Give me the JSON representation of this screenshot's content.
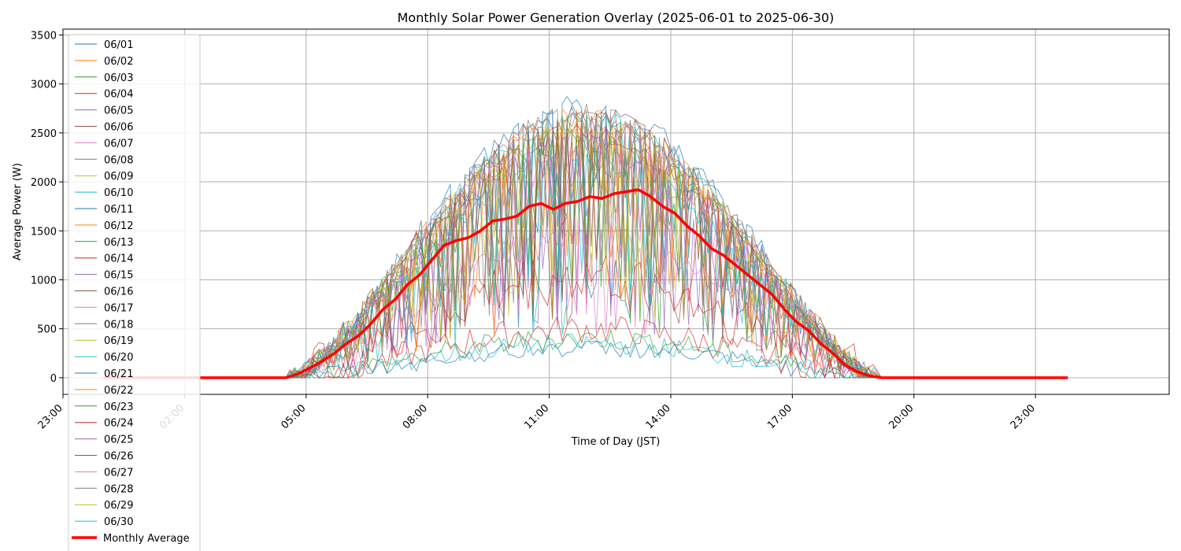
{
  "chart_data": {
    "type": "line",
    "title": "Monthly Solar Power Generation Overlay (2025-06-01 to 2025-06-30)",
    "xlabel": "Time of Day (JST)",
    "ylabel": "Average Power (W)",
    "x_unit": "hours of day (JST)",
    "xlim": [
      23.0,
      26.3
    ],
    "xlim_note": "axis spans 23:00 (previous day) to about 02:15 the next day; values below are hours since 00:00",
    "x_range_hours": [
      -1.0,
      26.3
    ],
    "ylim": [
      -170,
      3560
    ],
    "grid": true,
    "legend_position": "upper-left",
    "x_ticks": [
      {
        "label": "23:00",
        "hour": -1
      },
      {
        "label": "02:00",
        "hour": 2
      },
      {
        "label": "05:00",
        "hour": 5
      },
      {
        "label": "08:00",
        "hour": 8
      },
      {
        "label": "11:00",
        "hour": 11
      },
      {
        "label": "14:00",
        "hour": 14
      },
      {
        "label": "17:00",
        "hour": 17
      },
      {
        "label": "20:00",
        "hour": 20
      },
      {
        "label": "23:00",
        "hour": 23
      }
    ],
    "y_ticks": [
      0,
      500,
      1000,
      1500,
      2000,
      2500,
      3000,
      3500
    ],
    "daily_series_hours": [
      0,
      4.5,
      5,
      5.5,
      6,
      6.5,
      7,
      7.5,
      8,
      8.5,
      9,
      9.5,
      10,
      10.5,
      11,
      11.5,
      12,
      12.5,
      13,
      13.5,
      14,
      14.5,
      15,
      15.5,
      16,
      16.5,
      17,
      17.5,
      18,
      18.5,
      19,
      23.8
    ],
    "series": [
      {
        "name": "06/01",
        "color": "#1f77b4",
        "peak": 2700
      },
      {
        "name": "06/02",
        "color": "#ff7f0e",
        "peak": 2650
      },
      {
        "name": "06/03",
        "color": "#2ca02c",
        "peak": 2500
      },
      {
        "name": "06/04",
        "color": "#d62728",
        "peak": 500
      },
      {
        "name": "06/05",
        "color": "#9467bd",
        "peak": 2300
      },
      {
        "name": "06/06",
        "color": "#8c564b",
        "peak": 2600
      },
      {
        "name": "06/07",
        "color": "#e377c2",
        "peak": 2400
      },
      {
        "name": "06/08",
        "color": "#7f7f7f",
        "peak": 2650
      },
      {
        "name": "06/09",
        "color": "#bcbd22",
        "peak": 2600
      },
      {
        "name": "06/10",
        "color": "#17becf",
        "peak": 350
      },
      {
        "name": "06/11",
        "color": "#1f77b4",
        "peak": 2800
      },
      {
        "name": "06/12",
        "color": "#ff7f0e",
        "peak": 2700
      },
      {
        "name": "06/13",
        "color": "#2ca02c",
        "peak": 400
      },
      {
        "name": "06/14",
        "color": "#d62728",
        "peak": 2500
      },
      {
        "name": "06/15",
        "color": "#9467bd",
        "peak": 2550
      },
      {
        "name": "06/16",
        "color": "#8c564b",
        "peak": 2650
      },
      {
        "name": "06/17",
        "color": "#e377c2",
        "peak": 1500
      },
      {
        "name": "06/18",
        "color": "#7f7f7f",
        "peak": 2700
      },
      {
        "name": "06/19",
        "color": "#bcbd22",
        "peak": 2600
      },
      {
        "name": "06/20",
        "color": "#17becf",
        "peak": 2650
      },
      {
        "name": "06/21",
        "color": "#1f77b4",
        "peak": 300
      },
      {
        "name": "06/22",
        "color": "#ff7f0e",
        "peak": 2500
      },
      {
        "name": "06/23",
        "color": "#2ca02c",
        "peak": 2400
      },
      {
        "name": "06/24",
        "color": "#d62728",
        "peak": 1000
      },
      {
        "name": "06/25",
        "color": "#9467bd",
        "peak": 2400
      },
      {
        "name": "06/26",
        "color": "#8c564b",
        "peak": 2700
      },
      {
        "name": "06/27",
        "color": "#e377c2",
        "peak": 2600
      },
      {
        "name": "06/28",
        "color": "#7f7f7f",
        "peak": 2650
      },
      {
        "name": "06/29",
        "color": "#bcbd22",
        "peak": 2550
      },
      {
        "name": "06/30",
        "color": "#17becf",
        "peak": 2200
      }
    ],
    "average": {
      "name": "Monthly Average",
      "color": "#ff0000",
      "x_hours": [
        0.0,
        4.5,
        4.8,
        5.1,
        5.4,
        5.7,
        6.0,
        6.3,
        6.6,
        6.9,
        7.2,
        7.5,
        7.8,
        8.1,
        8.4,
        8.7,
        9.0,
        9.3,
        9.6,
        9.9,
        10.2,
        10.5,
        10.8,
        11.1,
        11.4,
        11.7,
        12.0,
        12.3,
        12.6,
        12.9,
        13.2,
        13.5,
        13.8,
        14.1,
        14.4,
        14.7,
        15.0,
        15.3,
        15.6,
        15.9,
        16.2,
        16.5,
        16.8,
        17.1,
        17.4,
        17.7,
        18.0,
        18.3,
        18.6,
        18.9,
        19.2,
        23.8
      ],
      "y_watts": [
        0,
        0,
        40,
        100,
        170,
        250,
        350,
        430,
        550,
        700,
        800,
        950,
        1050,
        1200,
        1350,
        1400,
        1430,
        1500,
        1600,
        1620,
        1650,
        1750,
        1780,
        1720,
        1780,
        1800,
        1850,
        1830,
        1880,
        1900,
        1920,
        1850,
        1750,
        1680,
        1550,
        1450,
        1320,
        1250,
        1150,
        1050,
        950,
        850,
        700,
        570,
        480,
        350,
        250,
        130,
        60,
        20,
        0,
        0
      ]
    }
  }
}
